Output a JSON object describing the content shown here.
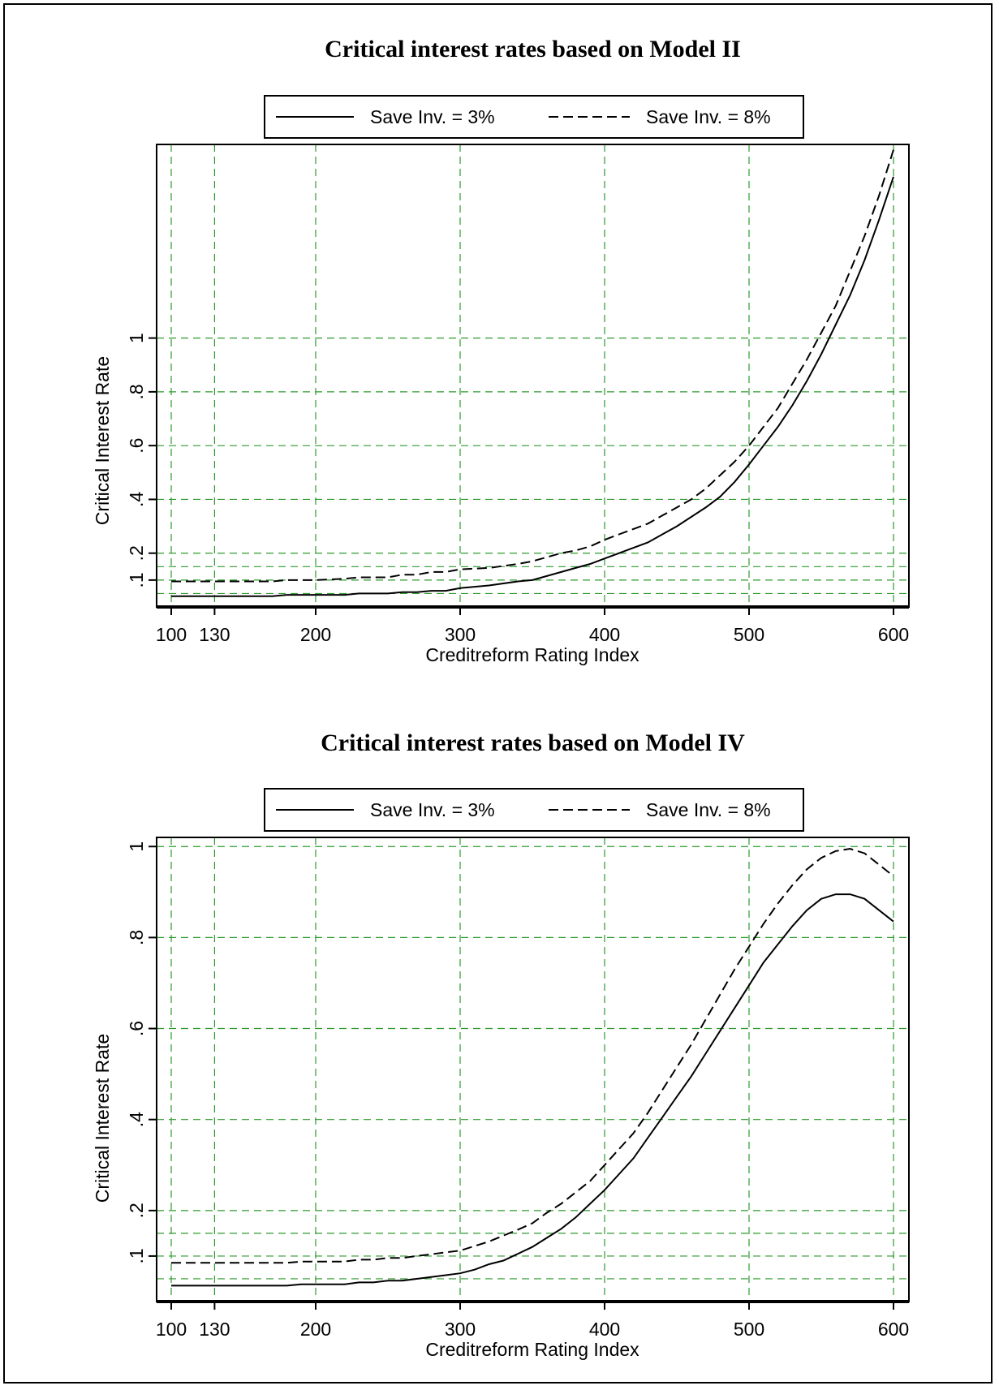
{
  "chart_data": [
    {
      "type": "line",
      "title": "Critical interest rates based on Model II",
      "xlabel": "Creditreform Rating Index",
      "ylabel": "Critical Interest Rate",
      "xlim": [
        100,
        600
      ],
      "ylim": [
        0.0,
        1.72
      ],
      "x_ticks": [
        100,
        130,
        200,
        300,
        400,
        500,
        600
      ],
      "y_ticks": [
        0.1,
        0.2,
        0.4,
        0.6,
        0.8,
        1.0
      ],
      "y_tick_labels": [
        ".1",
        ".2",
        ".4",
        ".6",
        ".8",
        "1"
      ],
      "x_grid": [
        100,
        130,
        200,
        300,
        400,
        500,
        600
      ],
      "y_grid": [
        0.05,
        0.1,
        0.15,
        0.2,
        0.4,
        0.6,
        0.8,
        1.0
      ],
      "grid": true,
      "legend_position": "top",
      "series": [
        {
          "name": "Save Inv. = 3%",
          "style": "solid",
          "color": "#000000",
          "x": [
            100,
            130,
            170,
            180,
            200,
            220,
            230,
            250,
            260,
            270,
            280,
            290,
            300,
            320,
            340,
            350,
            360,
            370,
            380,
            390,
            400,
            410,
            420,
            430,
            440,
            450,
            460,
            470,
            480,
            490,
            500,
            510,
            520,
            530,
            540,
            550,
            560,
            570,
            580,
            590,
            600
          ],
          "y": [
            0.04,
            0.04,
            0.04,
            0.045,
            0.045,
            0.045,
            0.05,
            0.05,
            0.055,
            0.055,
            0.06,
            0.06,
            0.07,
            0.08,
            0.095,
            0.1,
            0.115,
            0.13,
            0.145,
            0.16,
            0.18,
            0.2,
            0.22,
            0.24,
            0.27,
            0.3,
            0.335,
            0.37,
            0.41,
            0.465,
            0.53,
            0.6,
            0.67,
            0.75,
            0.84,
            0.94,
            1.05,
            1.16,
            1.29,
            1.44,
            1.6
          ]
        },
        {
          "name": "Save Inv. = 8%",
          "style": "dashed",
          "color": "#000000",
          "x": [
            100,
            130,
            170,
            180,
            200,
            220,
            230,
            250,
            260,
            270,
            280,
            290,
            300,
            320,
            340,
            350,
            360,
            370,
            380,
            390,
            400,
            410,
            420,
            430,
            440,
            450,
            460,
            470,
            480,
            490,
            500,
            510,
            520,
            530,
            540,
            550,
            560,
            570,
            580,
            590,
            600
          ],
          "y": [
            0.095,
            0.095,
            0.095,
            0.1,
            0.1,
            0.105,
            0.11,
            0.11,
            0.12,
            0.12,
            0.13,
            0.13,
            0.14,
            0.145,
            0.16,
            0.17,
            0.185,
            0.2,
            0.21,
            0.225,
            0.25,
            0.27,
            0.29,
            0.31,
            0.34,
            0.37,
            0.4,
            0.44,
            0.49,
            0.54,
            0.6,
            0.67,
            0.74,
            0.83,
            0.92,
            1.02,
            1.12,
            1.25,
            1.38,
            1.53,
            1.7
          ]
        }
      ]
    },
    {
      "type": "line",
      "title": "Critical interest rates based on Model IV",
      "xlabel": "Creditreform Rating Index",
      "ylabel": "Critical Interest Rate",
      "xlim": [
        100,
        600
      ],
      "ylim": [
        0.0,
        1.02
      ],
      "x_ticks": [
        100,
        130,
        200,
        300,
        400,
        500,
        600
      ],
      "y_ticks": [
        0.1,
        0.2,
        0.4,
        0.6,
        0.8,
        1.0
      ],
      "y_tick_labels": [
        ".1",
        ".2",
        ".4",
        ".6",
        ".8",
        "1"
      ],
      "x_grid": [
        100,
        130,
        200,
        300,
        400,
        500,
        600
      ],
      "y_grid": [
        0.05,
        0.1,
        0.15,
        0.2,
        0.4,
        0.6,
        0.8,
        1.0
      ],
      "grid": true,
      "legend_position": "top",
      "series": [
        {
          "name": "Save Inv. = 3%",
          "style": "solid",
          "color": "#000000",
          "x": [
            100,
            130,
            180,
            190,
            200,
            220,
            230,
            240,
            250,
            260,
            270,
            280,
            290,
            300,
            310,
            320,
            330,
            340,
            350,
            360,
            370,
            380,
            390,
            400,
            410,
            420,
            430,
            440,
            450,
            460,
            470,
            480,
            490,
            500,
            510,
            520,
            530,
            540,
            550,
            560,
            570,
            580,
            590,
            600
          ],
          "y": [
            0.035,
            0.035,
            0.035,
            0.038,
            0.038,
            0.038,
            0.042,
            0.042,
            0.046,
            0.046,
            0.05,
            0.054,
            0.058,
            0.062,
            0.07,
            0.082,
            0.09,
            0.105,
            0.12,
            0.14,
            0.16,
            0.185,
            0.215,
            0.245,
            0.28,
            0.315,
            0.36,
            0.405,
            0.45,
            0.495,
            0.545,
            0.595,
            0.645,
            0.695,
            0.745,
            0.785,
            0.825,
            0.86,
            0.885,
            0.895,
            0.895,
            0.885,
            0.86,
            0.835
          ]
        },
        {
          "name": "Save Inv. = 8%",
          "style": "dashed",
          "color": "#000000",
          "x": [
            100,
            130,
            180,
            190,
            200,
            220,
            230,
            240,
            250,
            260,
            270,
            280,
            290,
            300,
            310,
            320,
            330,
            340,
            350,
            360,
            370,
            380,
            390,
            400,
            410,
            420,
            430,
            440,
            450,
            460,
            470,
            480,
            490,
            500,
            510,
            520,
            530,
            540,
            550,
            560,
            570,
            580,
            590,
            600
          ],
          "y": [
            0.085,
            0.085,
            0.085,
            0.088,
            0.088,
            0.088,
            0.092,
            0.092,
            0.096,
            0.096,
            0.1,
            0.104,
            0.108,
            0.112,
            0.122,
            0.132,
            0.145,
            0.158,
            0.172,
            0.195,
            0.215,
            0.24,
            0.265,
            0.3,
            0.335,
            0.37,
            0.415,
            0.465,
            0.515,
            0.565,
            0.62,
            0.675,
            0.73,
            0.78,
            0.83,
            0.875,
            0.915,
            0.95,
            0.975,
            0.99,
            0.995,
            0.985,
            0.96,
            0.935
          ]
        }
      ]
    }
  ]
}
